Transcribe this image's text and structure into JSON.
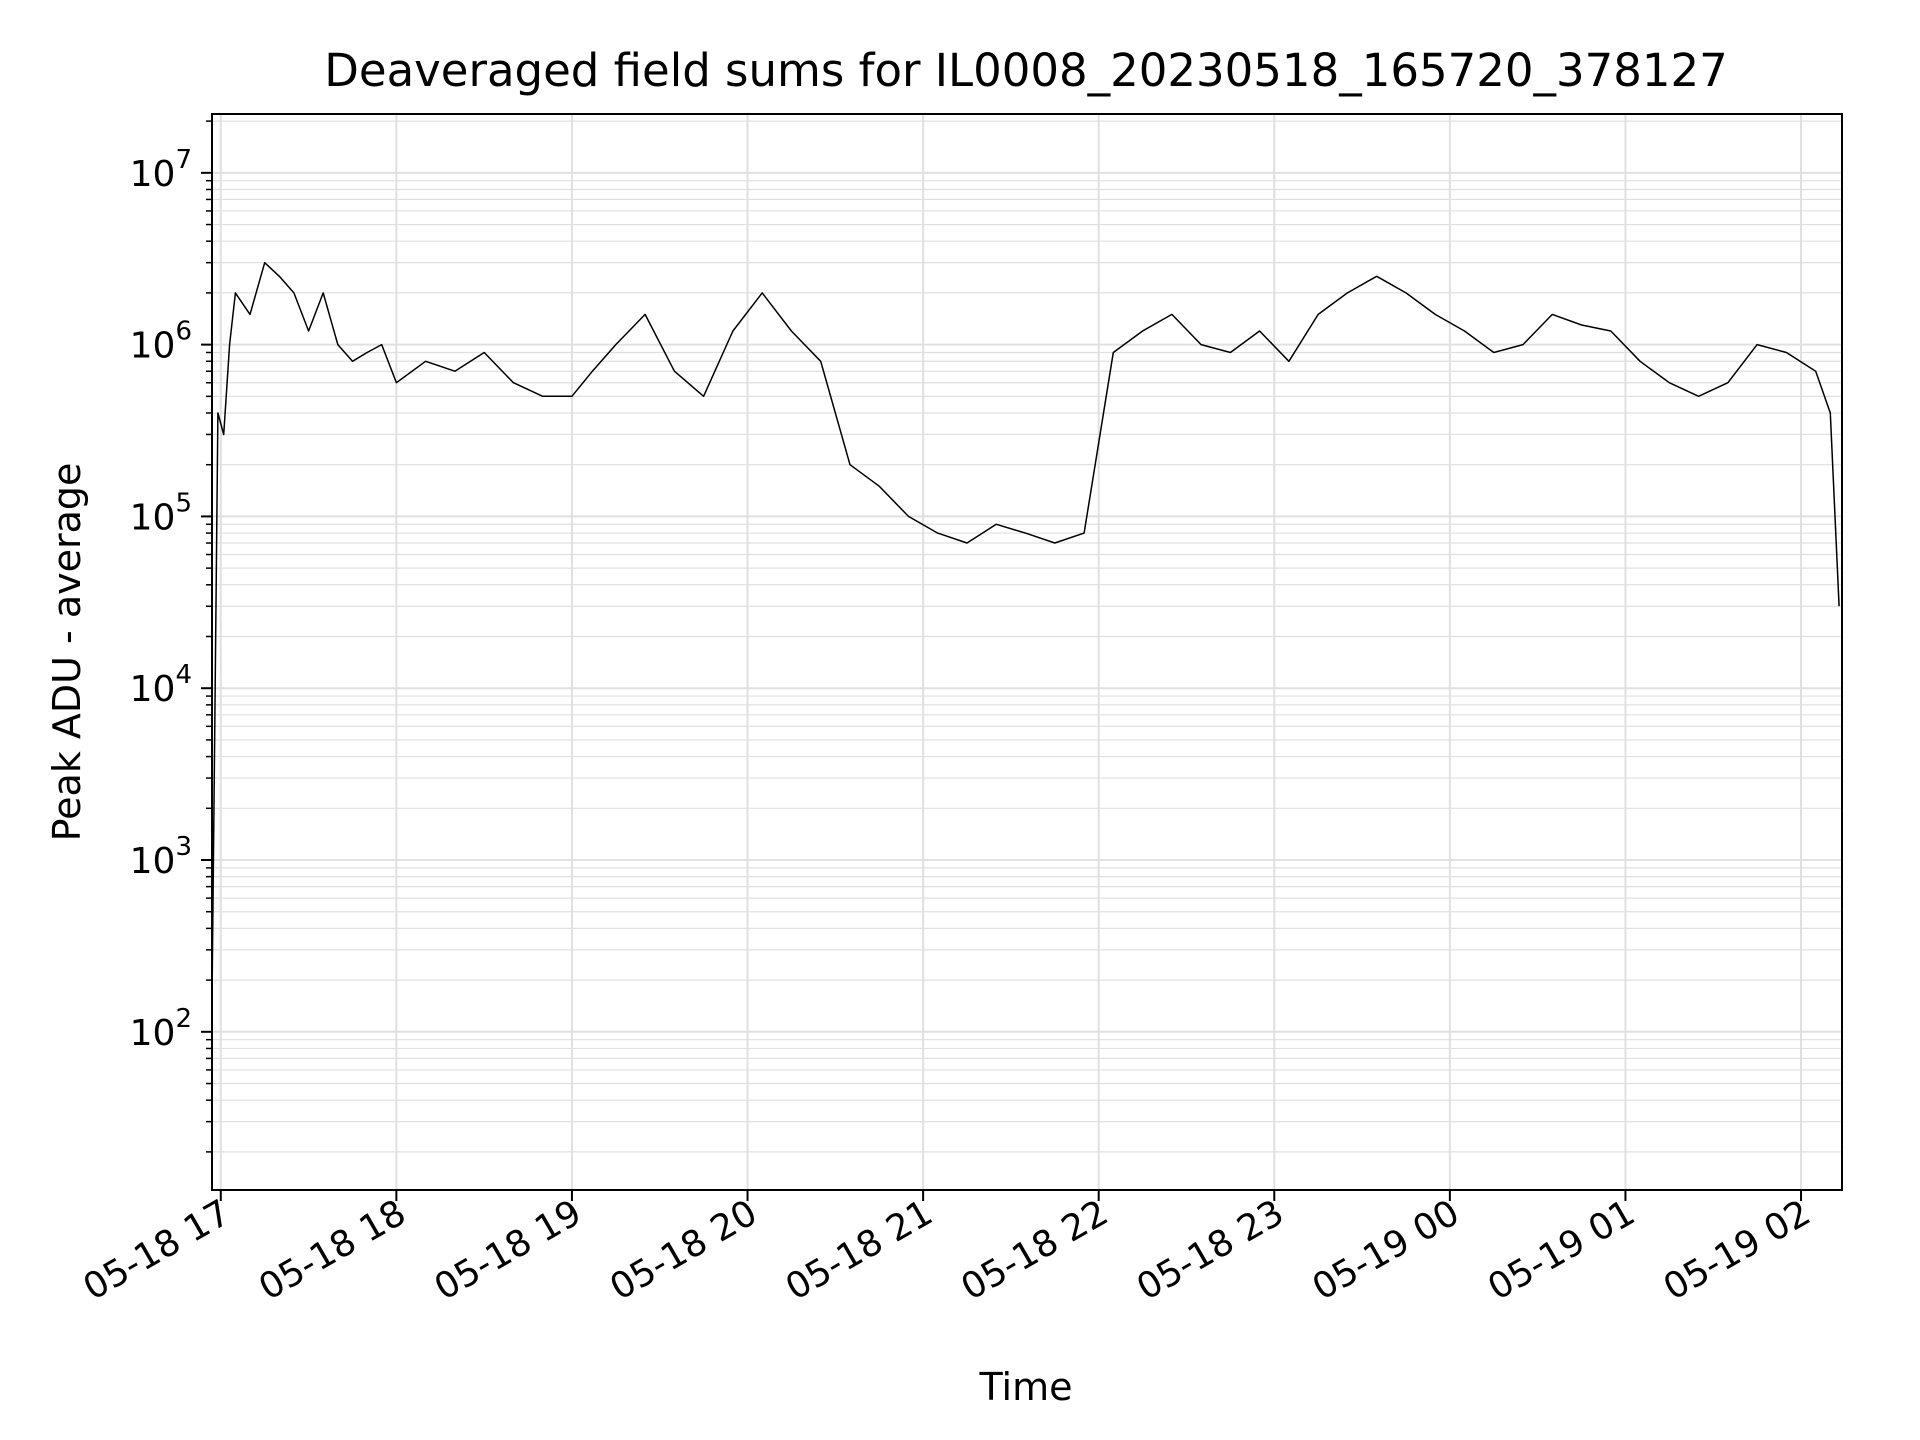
{
  "chart_data": {
    "type": "line",
    "title": "Deaveraged field sums for IL0008_20230518_165720_378127",
    "xlabel": "Time",
    "ylabel": "Peak ADU - average",
    "y_scale": "log",
    "ylim": [
      12,
      22000000
    ],
    "xlim": [
      "2023-05-18 16:57",
      "2023-05-19 02:14"
    ],
    "grid": true,
    "line_color": "#000000",
    "grid_color": "#e0e0e0",
    "x_ticks": [
      {
        "label": "05-18 17",
        "t": "2023-05-18 17:00"
      },
      {
        "label": "05-18 18",
        "t": "2023-05-18 18:00"
      },
      {
        "label": "05-18 19",
        "t": "2023-05-18 19:00"
      },
      {
        "label": "05-18 20",
        "t": "2023-05-18 20:00"
      },
      {
        "label": "05-18 21",
        "t": "2023-05-18 21:00"
      },
      {
        "label": "05-18 22",
        "t": "2023-05-18 22:00"
      },
      {
        "label": "05-18 23",
        "t": "2023-05-18 23:00"
      },
      {
        "label": "05-19 00",
        "t": "2023-05-19 00:00"
      },
      {
        "label": "05-19 01",
        "t": "2023-05-19 01:00"
      },
      {
        "label": "05-19 02",
        "t": "2023-05-19 02:00"
      }
    ],
    "y_ticks": [
      {
        "value": 100,
        "base": "10",
        "exp": "2"
      },
      {
        "value": 1000,
        "base": "10",
        "exp": "3"
      },
      {
        "value": 10000,
        "base": "10",
        "exp": "4"
      },
      {
        "value": 100000,
        "base": "10",
        "exp": "5"
      },
      {
        "value": 1000000,
        "base": "10",
        "exp": "6"
      },
      {
        "value": 10000000,
        "base": "10",
        "exp": "7"
      }
    ],
    "series": [
      {
        "x": [
          "2023-05-18 16:57",
          "2023-05-18 16:58",
          "2023-05-18 16:59",
          "2023-05-18 17:01",
          "2023-05-18 17:03",
          "2023-05-18 17:05",
          "2023-05-18 17:10",
          "2023-05-18 17:15",
          "2023-05-18 17:20",
          "2023-05-18 17:25",
          "2023-05-18 17:30",
          "2023-05-18 17:35",
          "2023-05-18 17:40",
          "2023-05-18 17:45",
          "2023-05-18 17:50",
          "2023-05-18 17:55",
          "2023-05-18 18:00",
          "2023-05-18 18:10",
          "2023-05-18 18:20",
          "2023-05-18 18:30",
          "2023-05-18 18:40",
          "2023-05-18 18:50",
          "2023-05-18 19:00",
          "2023-05-18 19:07",
          "2023-05-18 19:15",
          "2023-05-18 19:25",
          "2023-05-18 19:35",
          "2023-05-18 19:45",
          "2023-05-18 19:55",
          "2023-05-18 20:05",
          "2023-05-18 20:15",
          "2023-05-18 20:25",
          "2023-05-18 20:35",
          "2023-05-18 20:45",
          "2023-05-18 20:55",
          "2023-05-18 21:05",
          "2023-05-18 21:15",
          "2023-05-18 21:25",
          "2023-05-18 21:35",
          "2023-05-18 21:45",
          "2023-05-18 21:55",
          "2023-05-18 22:05",
          "2023-05-18 22:15",
          "2023-05-18 22:25",
          "2023-05-18 22:35",
          "2023-05-18 22:45",
          "2023-05-18 22:55",
          "2023-05-18 23:05",
          "2023-05-18 23:15",
          "2023-05-18 23:25",
          "2023-05-18 23:35",
          "2023-05-18 23:45",
          "2023-05-18 23:55",
          "2023-05-19 00:05",
          "2023-05-19 00:15",
          "2023-05-19 00:25",
          "2023-05-19 00:35",
          "2023-05-19 00:45",
          "2023-05-19 00:55",
          "2023-05-19 01:05",
          "2023-05-19 01:15",
          "2023-05-19 01:25",
          "2023-05-19 01:35",
          "2023-05-19 01:45",
          "2023-05-19 01:55",
          "2023-05-19 02:05",
          "2023-05-19 02:10",
          "2023-05-19 02:13"
        ],
        "y": [
          150,
          7000,
          400000,
          300000,
          1000000,
          2000000,
          1500000,
          3000000,
          2500000,
          2000000,
          1200000,
          2000000,
          1000000,
          800000,
          900000,
          1000000,
          600000,
          800000,
          700000,
          900000,
          600000,
          500000,
          500000,
          700000,
          1000000,
          1500000,
          700000,
          500000,
          1200000,
          2000000,
          1200000,
          800000,
          200000,
          150000,
          100000,
          80000,
          70000,
          90000,
          80000,
          70000,
          80000,
          900000,
          1200000,
          1500000,
          1000000,
          900000,
          1200000,
          800000,
          1500000,
          2000000,
          2500000,
          2000000,
          1500000,
          1200000,
          900000,
          1000000,
          1500000,
          1300000,
          1200000,
          800000,
          600000,
          500000,
          600000,
          1000000,
          900000,
          700000,
          400000,
          30000
        ]
      }
    ]
  }
}
